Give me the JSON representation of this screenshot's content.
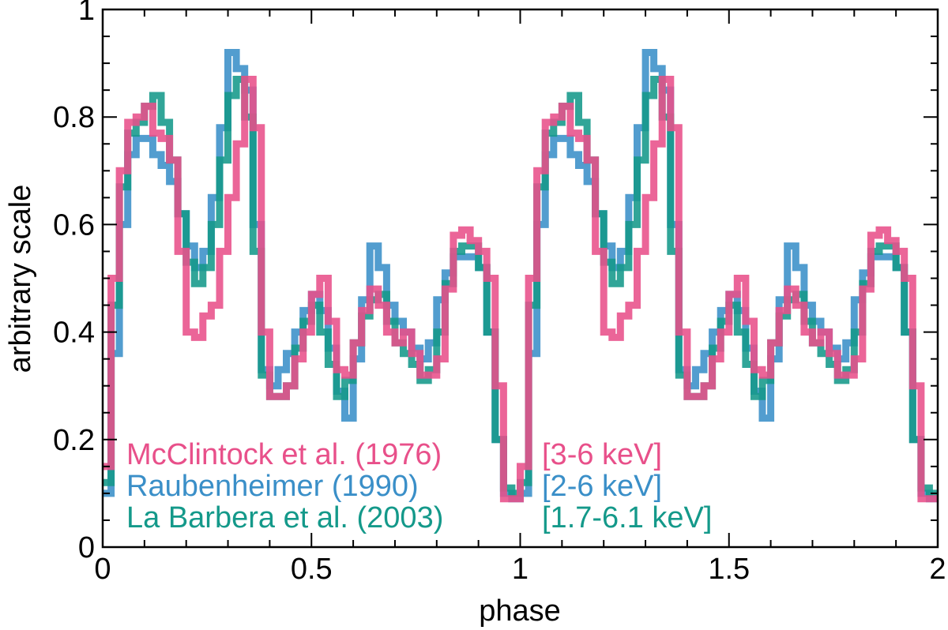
{
  "chart_data": {
    "type": "line",
    "title": "",
    "xlabel": "phase",
    "ylabel": "arbitrary scale",
    "xlim": [
      0,
      2
    ],
    "ylim": [
      0,
      1
    ],
    "x_ticks": [
      0,
      0.5,
      1,
      1.5,
      2
    ],
    "x_tick_labels": [
      "0",
      "0.5",
      "1",
      "1.5",
      "2"
    ],
    "y_ticks": [
      0,
      0.2,
      0.4,
      0.6,
      0.8,
      1
    ],
    "y_tick_labels": [
      "0",
      "0.2",
      "0.4",
      "0.6",
      "0.8",
      "1"
    ],
    "step_width": 0.02,
    "series": [
      {
        "name": "McClintock et al. (1976)",
        "energy": "[3-6 keV]",
        "color": "#e8508a",
        "values": [
          0.15,
          0.5,
          0.7,
          0.79,
          0.8,
          0.82,
          0.77,
          0.76,
          0.72,
          0.55,
          0.4,
          0.39,
          0.43,
          0.45,
          0.55,
          0.65,
          0.75,
          0.87,
          0.78,
          0.4,
          0.28,
          0.28,
          0.3,
          0.35,
          0.4,
          0.47,
          0.5,
          0.42,
          0.33,
          0.32,
          0.38,
          0.44,
          0.48,
          0.45,
          0.4,
          0.38,
          0.4,
          0.36,
          0.32,
          0.32,
          0.35,
          0.48,
          0.58,
          0.59,
          0.57,
          0.55,
          0.5,
          0.3,
          0.09,
          0.09
        ]
      },
      {
        "name": "Raubenheimer (1990)",
        "energy": "[2-6 keV]",
        "color": "#3a8fc8",
        "values": [
          0.1,
          0.36,
          0.6,
          0.73,
          0.76,
          0.76,
          0.73,
          0.71,
          0.68,
          0.62,
          0.56,
          0.52,
          0.55,
          0.65,
          0.78,
          0.92,
          0.89,
          0.85,
          0.6,
          0.33,
          0.3,
          0.33,
          0.36,
          0.4,
          0.44,
          0.47,
          0.44,
          0.37,
          0.29,
          0.24,
          0.35,
          0.46,
          0.56,
          0.52,
          0.45,
          0.42,
          0.4,
          0.37,
          0.35,
          0.38,
          0.46,
          0.51,
          0.54,
          0.54,
          0.54,
          0.52,
          0.4,
          0.2,
          0.1,
          0.09
        ]
      },
      {
        "name": "La Barbera et al. (2003)",
        "energy": "[1.7-6.1 keV]",
        "color": "#14998a",
        "values": [
          0.12,
          0.45,
          0.67,
          0.77,
          0.79,
          0.82,
          0.84,
          0.79,
          0.72,
          0.62,
          0.53,
          0.49,
          0.52,
          0.6,
          0.72,
          0.84,
          0.87,
          0.8,
          0.55,
          0.32,
          0.28,
          0.28,
          0.3,
          0.37,
          0.42,
          0.45,
          0.4,
          0.34,
          0.28,
          0.31,
          0.38,
          0.43,
          0.46,
          0.47,
          0.42,
          0.38,
          0.36,
          0.34,
          0.31,
          0.33,
          0.4,
          0.49,
          0.55,
          0.56,
          0.56,
          0.52,
          0.4,
          0.2,
          0.11,
          0.1
        ]
      }
    ]
  }
}
